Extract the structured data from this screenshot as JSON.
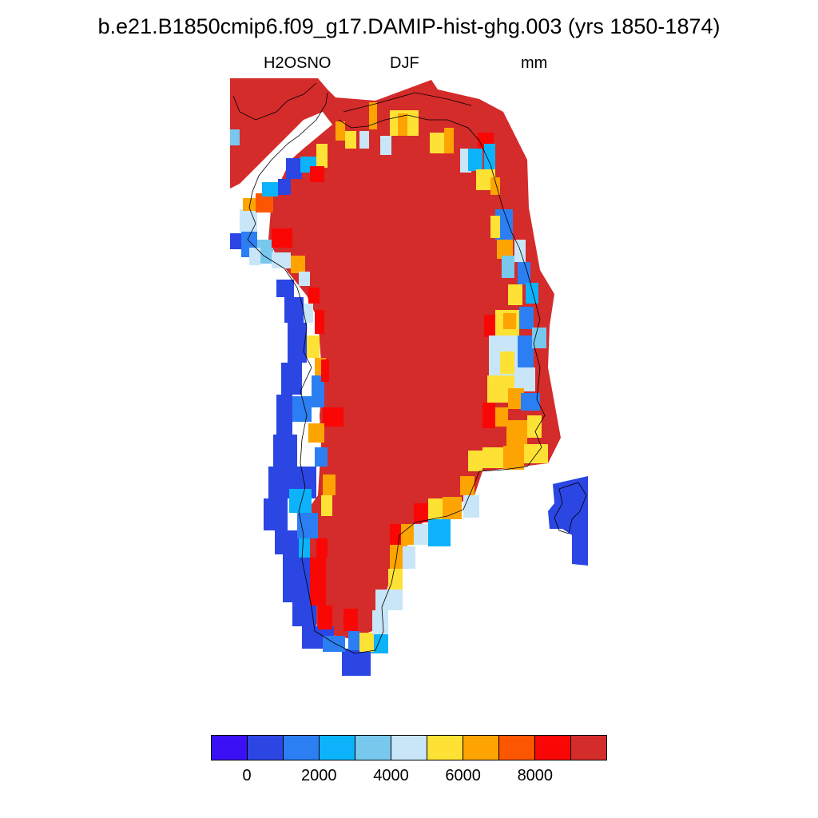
{
  "title": "b.e21.B1850cmip6.f09_g17.DAMIP-hist-ghg.003 (yrs 1850-1874)",
  "labels": {
    "variable": "H2OSNO",
    "season": "DJF",
    "units": "mm"
  },
  "map_data": {
    "region": "Greenland",
    "field": "H2OSNO",
    "season": "DJF",
    "interior_value_class": "> 9000",
    "coastal_values": "mixed: 0-1000 (west/southwest coast) to > 9000 (interior)",
    "coastline": true
  },
  "colorbar": {
    "colors": [
      "#3c10f5",
      "#2b46e3",
      "#2c7ff2",
      "#0cb3fa",
      "#78c8ee",
      "#c8e6f8",
      "#fde135",
      "#fda403",
      "#fd5601",
      "#f90705",
      "#d42b2b"
    ],
    "tick_labels": [
      "0",
      "2000",
      "4000",
      "6000",
      "8000"
    ]
  }
}
